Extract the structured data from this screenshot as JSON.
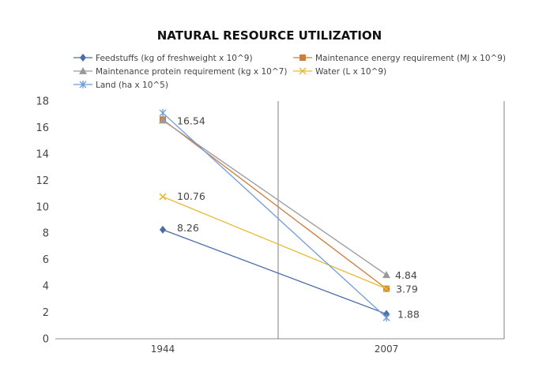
{
  "chart_data": {
    "type": "line",
    "title": "NATURAL RESOURCE UTILIZATION",
    "categories": [
      "1944",
      "2007"
    ],
    "ylim": [
      0,
      18
    ],
    "yticks": [
      0,
      2,
      4,
      6,
      8,
      10,
      12,
      14,
      16,
      18
    ],
    "grid": false,
    "legend_position": "top",
    "series": [
      {
        "name": "Feedstuffs (kg of freshweight x 10^9)",
        "values": [
          8.26,
          1.88
        ],
        "color": "#4A6CA8",
        "marker": "diamond",
        "labels": [
          "8.26",
          "1.88"
        ]
      },
      {
        "name": "Maintenance energy requirement (MJ x 10^9)",
        "values": [
          16.6,
          3.79
        ],
        "color": "#D07C3A",
        "marker": "square",
        "labels": [
          "",
          "3.79"
        ]
      },
      {
        "name": "Maintenance protein requirement (kg x 10^7)",
        "values": [
          16.54,
          4.84
        ],
        "color": "#9A9A9A",
        "marker": "triangle",
        "labels": [
          "16.54",
          "4.84"
        ]
      },
      {
        "name": "Water (L x 10^9)",
        "values": [
          10.76,
          3.79
        ],
        "color": "#E8B933",
        "marker": "x",
        "labels": [
          "10.76",
          ""
        ]
      },
      {
        "name": "Land (ha x 10^5)",
        "values": [
          17.1,
          1.6
        ],
        "color": "#6F9BD8",
        "marker": "star",
        "labels": [
          "",
          ""
        ]
      }
    ]
  }
}
